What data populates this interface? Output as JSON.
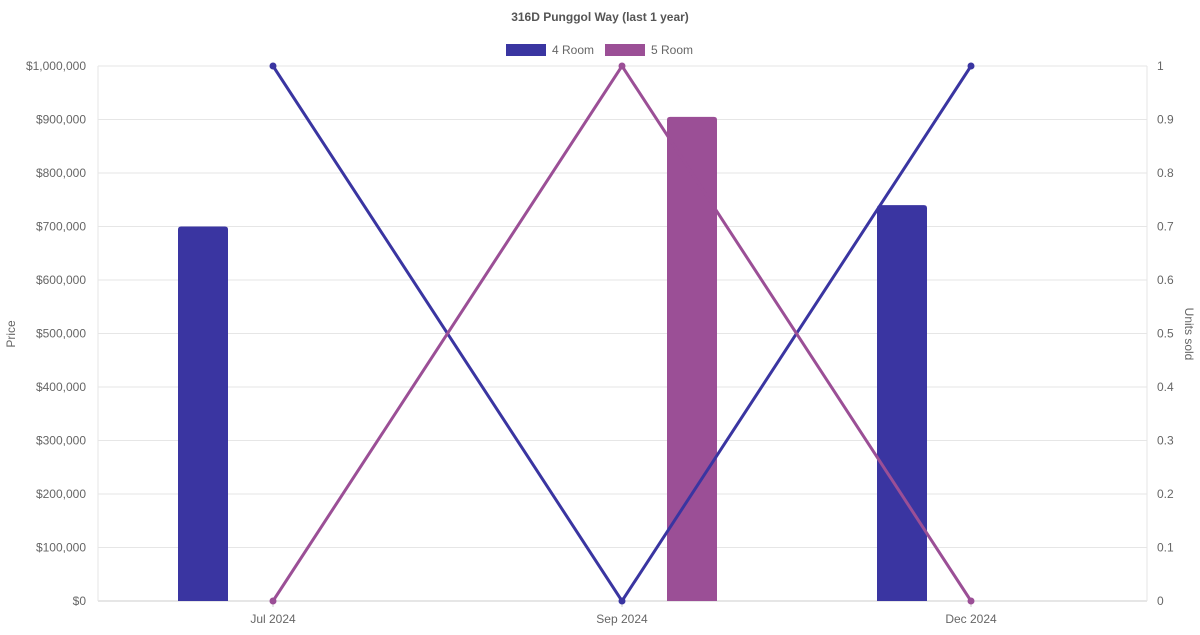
{
  "chart_data": {
    "type": "bar",
    "title": "316D Punggol Way (last 1 year)",
    "categories": [
      "Jul 2024",
      "Sep 2024",
      "Dec 2024"
    ],
    "y_left": {
      "label": "Price",
      "range": [
        0,
        1000000
      ],
      "ticks": [
        "$0",
        "$100,000",
        "$200,000",
        "$300,000",
        "$400,000",
        "$500,000",
        "$600,000",
        "$700,000",
        "$800,000",
        "$900,000",
        "$1,000,000"
      ],
      "tick_values": [
        0,
        100000,
        200000,
        300000,
        400000,
        500000,
        600000,
        700000,
        800000,
        900000,
        1000000
      ]
    },
    "y_right": {
      "label": "Units sold",
      "range": [
        0,
        1
      ],
      "ticks": [
        "0",
        "0.1",
        "0.2",
        "0.3",
        "0.4",
        "0.5",
        "0.6",
        "0.7",
        "0.8",
        "0.9",
        "1"
      ],
      "tick_values": [
        0,
        0.1,
        0.2,
        0.3,
        0.4,
        0.5,
        0.6,
        0.7,
        0.8,
        0.9,
        1
      ]
    },
    "grid": true,
    "legend_position": "top-center",
    "series": [
      {
        "name": "4 Room",
        "color": "#3a35a1",
        "price": [
          700000,
          null,
          740000
        ],
        "units_sold": [
          1,
          0,
          1
        ]
      },
      {
        "name": "5 Room",
        "color": "#9b4f96",
        "price": [
          null,
          905000,
          null
        ],
        "units_sold": [
          0,
          1,
          0
        ]
      }
    ]
  }
}
